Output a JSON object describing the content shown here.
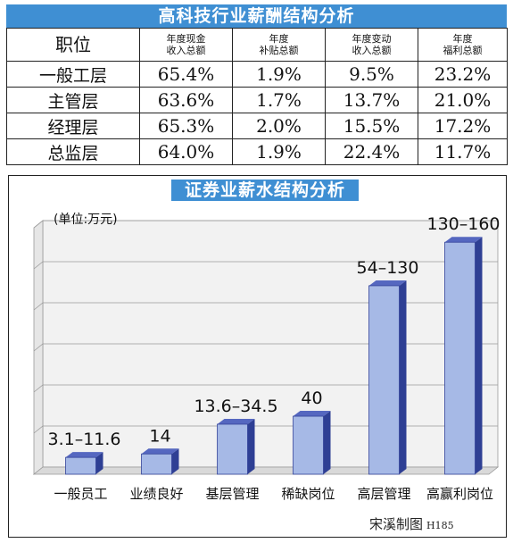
{
  "table": {
    "title": "高科技行业薪酬结构分析",
    "headers": [
      [
        "职位"
      ],
      [
        "年度现金",
        "收入总额"
      ],
      [
        "年度",
        "补贴总额"
      ],
      [
        "年度变动",
        "收入总额"
      ],
      [
        "年度",
        "福利总额"
      ]
    ],
    "rows": [
      [
        "一般工层",
        "65.4%",
        "1.9%",
        "9.5%",
        "23.2%"
      ],
      [
        "主管层",
        "63.6%",
        "1.7%",
        "13.7%",
        "21.0%"
      ],
      [
        "经理层",
        "65.3%",
        "2.0%",
        "15.5%",
        "17.2%"
      ],
      [
        "总监层",
        "64.0%",
        "1.9%",
        "22.4%",
        "11.7%"
      ]
    ]
  },
  "chart_data": {
    "type": "bar",
    "title": "证券业薪水结构分析",
    "unit_label": "(单位:万元)",
    "categories": [
      "一般员工",
      "业绩良好",
      "基层管理",
      "稀缺岗位",
      "高层管理",
      "高赢利岗位"
    ],
    "value_labels": [
      "3.1–11.6",
      "14",
      "13.6–34.5",
      "40",
      "54–130",
      "130–160"
    ],
    "values": [
      11.6,
      14,
      34.5,
      40,
      130,
      160
    ],
    "ylim": [
      0,
      170
    ],
    "grid": true,
    "bar_colors": {
      "front": "#a6b9e6",
      "side": "#2e3f94",
      "top": "#5567c0"
    },
    "credit": "宋溪制图",
    "credit_code": "H185"
  }
}
